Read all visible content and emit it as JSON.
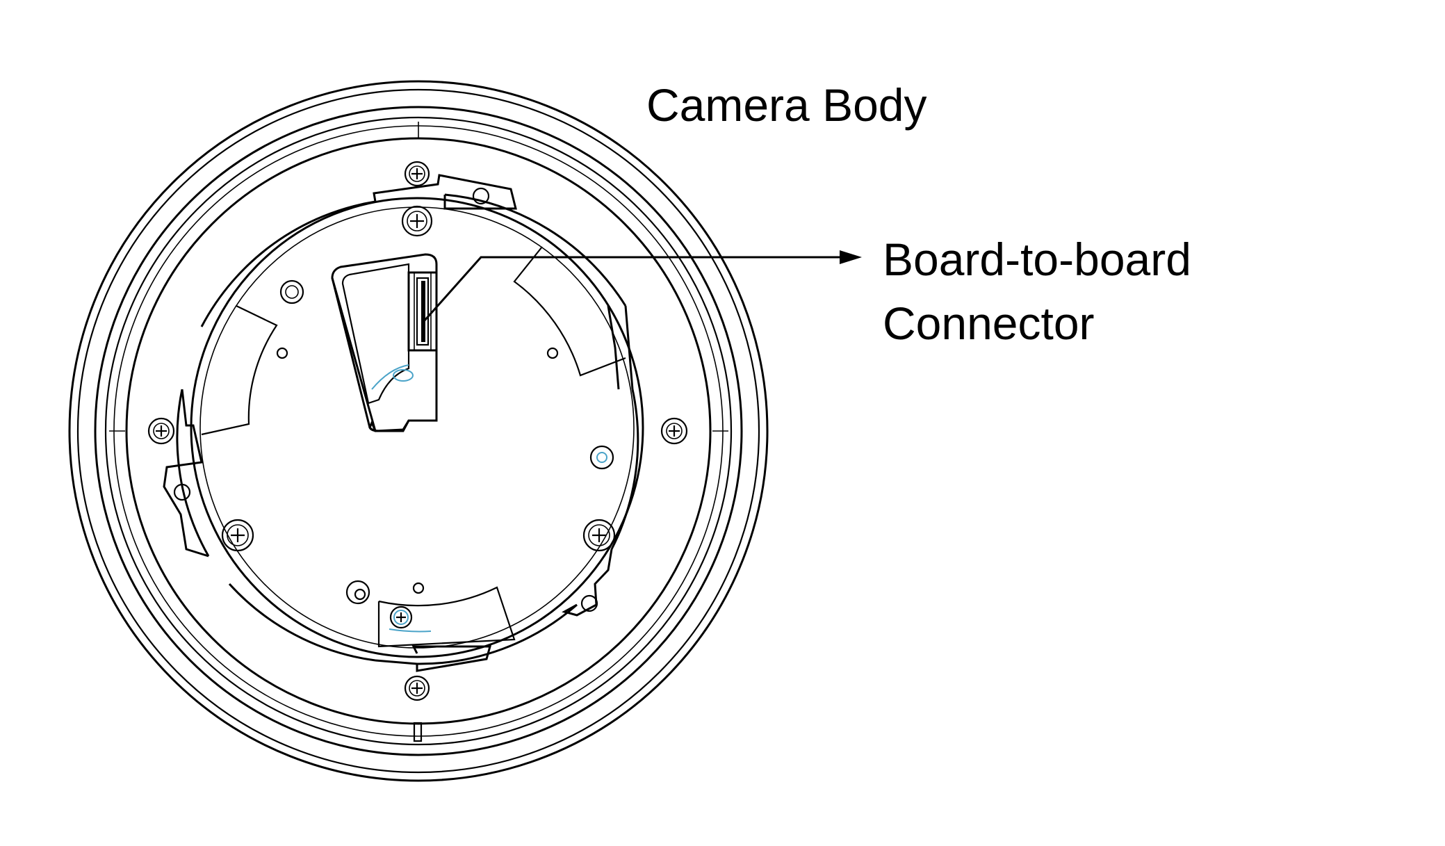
{
  "labels": {
    "title": "Camera Body",
    "connector_line1": "Board-to-board",
    "connector_line2": "Connector"
  },
  "colors": {
    "line": "#000000",
    "accent": "#4aa3c8",
    "background": "#ffffff"
  }
}
